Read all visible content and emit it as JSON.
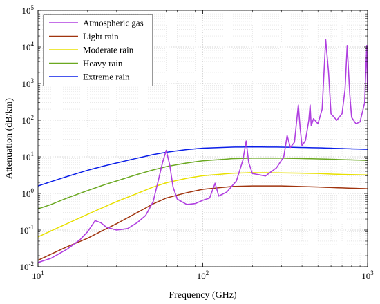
{
  "chart_data": {
    "type": "line",
    "xlabel": "Frequency (GHz)",
    "ylabel": "Attenuation (dB/km)",
    "x_scale": "log",
    "y_scale": "log",
    "xlim": [
      10,
      1000
    ],
    "ylim": [
      0.01,
      100000
    ],
    "grid": "on (major and minor, dotted)",
    "legend_position": "top-left",
    "x_ticks": [
      10,
      100,
      1000
    ],
    "y_ticks": [
      0.01,
      0.1,
      1,
      10,
      100,
      1000,
      10000,
      100000
    ],
    "x_tick_labels": [
      {
        "base": "10",
        "exp": "1"
      },
      {
        "base": "10",
        "exp": "2"
      },
      {
        "base": "10",
        "exp": "3"
      }
    ],
    "y_tick_labels": [
      {
        "base": "10",
        "exp": "-2"
      },
      {
        "base": "10",
        "exp": "-1"
      },
      {
        "base": "10",
        "exp": "0"
      },
      {
        "base": "10",
        "exp": "1"
      },
      {
        "base": "10",
        "exp": "2"
      },
      {
        "base": "10",
        "exp": "3"
      },
      {
        "base": "10",
        "exp": "4"
      },
      {
        "base": "10",
        "exp": "5"
      }
    ],
    "series": [
      {
        "name": "Atmospheric gas",
        "color": "#b040e0",
        "x": [
          10,
          12,
          15,
          18,
          20,
          22.2,
          24,
          26,
          30,
          35,
          40,
          45,
          50,
          54,
          57,
          60,
          63,
          66,
          70,
          80,
          90,
          100,
          110,
          118.75,
          125,
          140,
          160,
          175,
          183.3,
          190,
          200,
          240,
          280,
          310,
          325,
          340,
          360,
          380,
          390,
          400,
          420,
          440,
          448,
          455,
          470,
          500,
          530,
          557,
          580,
          600,
          650,
          700,
          730,
          752,
          780,
          800,
          850,
          900,
          960,
          988,
          1000
        ],
        "y": [
          0.013,
          0.017,
          0.03,
          0.055,
          0.09,
          0.18,
          0.16,
          0.12,
          0.1,
          0.11,
          0.16,
          0.25,
          0.6,
          2.5,
          7,
          15,
          6,
          1.5,
          0.7,
          0.5,
          0.53,
          0.65,
          0.75,
          1.9,
          0.85,
          1.1,
          2.2,
          8,
          27,
          7,
          3.5,
          3,
          5,
          10,
          38,
          18,
          25,
          260,
          60,
          20,
          28,
          100,
          260,
          70,
          110,
          80,
          200,
          16000,
          2000,
          150,
          100,
          150,
          700,
          11000,
          500,
          120,
          80,
          90,
          300,
          11000,
          600
        ]
      },
      {
        "name": "Light rain",
        "color": "#a0340e",
        "x": [
          10,
          12,
          15,
          20,
          25,
          30,
          40,
          50,
          60,
          80,
          100,
          150,
          200,
          300,
          500,
          700,
          1000
        ],
        "y": [
          0.015,
          0.022,
          0.035,
          0.06,
          0.1,
          0.15,
          0.3,
          0.52,
          0.75,
          1.05,
          1.3,
          1.55,
          1.6,
          1.6,
          1.5,
          1.42,
          1.35
        ]
      },
      {
        "name": "Moderate rain",
        "color": "#e8e000",
        "x": [
          10,
          12,
          15,
          20,
          25,
          30,
          40,
          50,
          60,
          80,
          100,
          150,
          200,
          300,
          500,
          700,
          1000
        ],
        "y": [
          0.065,
          0.095,
          0.15,
          0.27,
          0.42,
          0.6,
          1.0,
          1.5,
          1.95,
          2.6,
          3.05,
          3.55,
          3.7,
          3.65,
          3.5,
          3.3,
          3.2
        ]
      },
      {
        "name": "Heavy rain",
        "color": "#6aa820",
        "x": [
          10,
          12,
          15,
          20,
          25,
          30,
          40,
          50,
          60,
          80,
          100,
          150,
          200,
          300,
          500,
          700,
          1000
        ],
        "y": [
          0.38,
          0.5,
          0.75,
          1.2,
          1.7,
          2.2,
          3.3,
          4.4,
          5.4,
          6.8,
          7.8,
          8.9,
          9.2,
          9.2,
          8.8,
          8.4,
          8.0
        ]
      },
      {
        "name": "Extreme rain",
        "color": "#0a1ee8",
        "x": [
          10,
          12,
          15,
          20,
          25,
          30,
          40,
          50,
          60,
          80,
          100,
          150,
          200,
          300,
          500,
          700,
          1000
        ],
        "y": [
          1.6,
          2.1,
          2.9,
          4.3,
          5.6,
          6.8,
          9.2,
          11.5,
          13.3,
          15.8,
          17.2,
          18.4,
          18.6,
          18.4,
          17.6,
          16.8,
          16.0
        ]
      }
    ]
  }
}
